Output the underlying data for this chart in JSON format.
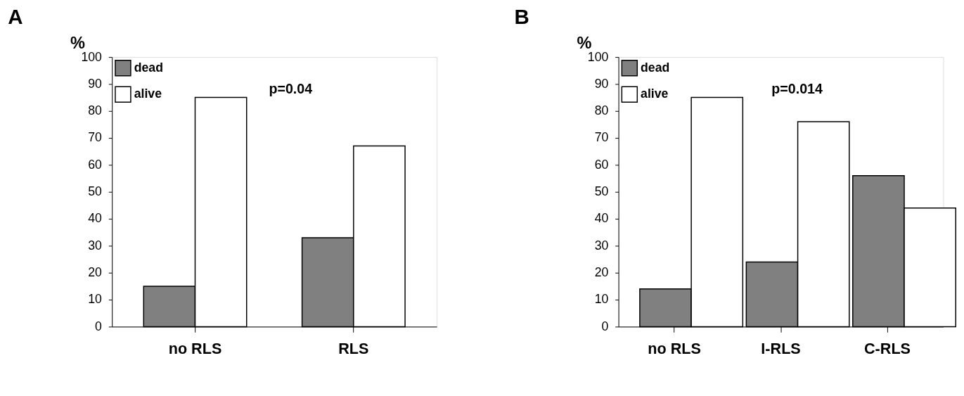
{
  "chart_data": [
    {
      "type": "bar",
      "title": "A",
      "ylabel": "%",
      "categories": [
        "no RLS",
        "RLS"
      ],
      "series": [
        {
          "name": "dead",
          "color": "#808080",
          "values": [
            15,
            33
          ]
        },
        {
          "name": "alive",
          "color": "#ffffff",
          "values": [
            85,
            67
          ]
        }
      ],
      "ylim": [
        0,
        100
      ],
      "yticks": [
        0,
        10,
        20,
        30,
        40,
        50,
        60,
        70,
        80,
        90,
        100
      ],
      "grid": false,
      "legend": "top left",
      "annotations": [
        "p=0.04"
      ]
    },
    {
      "type": "bar",
      "title": "B",
      "ylabel": "%",
      "categories": [
        "no RLS",
        "I-RLS",
        "C-RLS"
      ],
      "series": [
        {
          "name": "dead",
          "color": "#808080",
          "values": [
            14,
            24,
            56
          ]
        },
        {
          "name": "alive",
          "color": "#ffffff",
          "values": [
            85,
            76,
            44
          ]
        }
      ],
      "ylim": [
        0,
        100
      ],
      "yticks": [
        0,
        10,
        20,
        30,
        40,
        50,
        60,
        70,
        80,
        90,
        100
      ],
      "grid": false,
      "legend": "top left",
      "annotations": [
        "p=0.014"
      ]
    }
  ]
}
